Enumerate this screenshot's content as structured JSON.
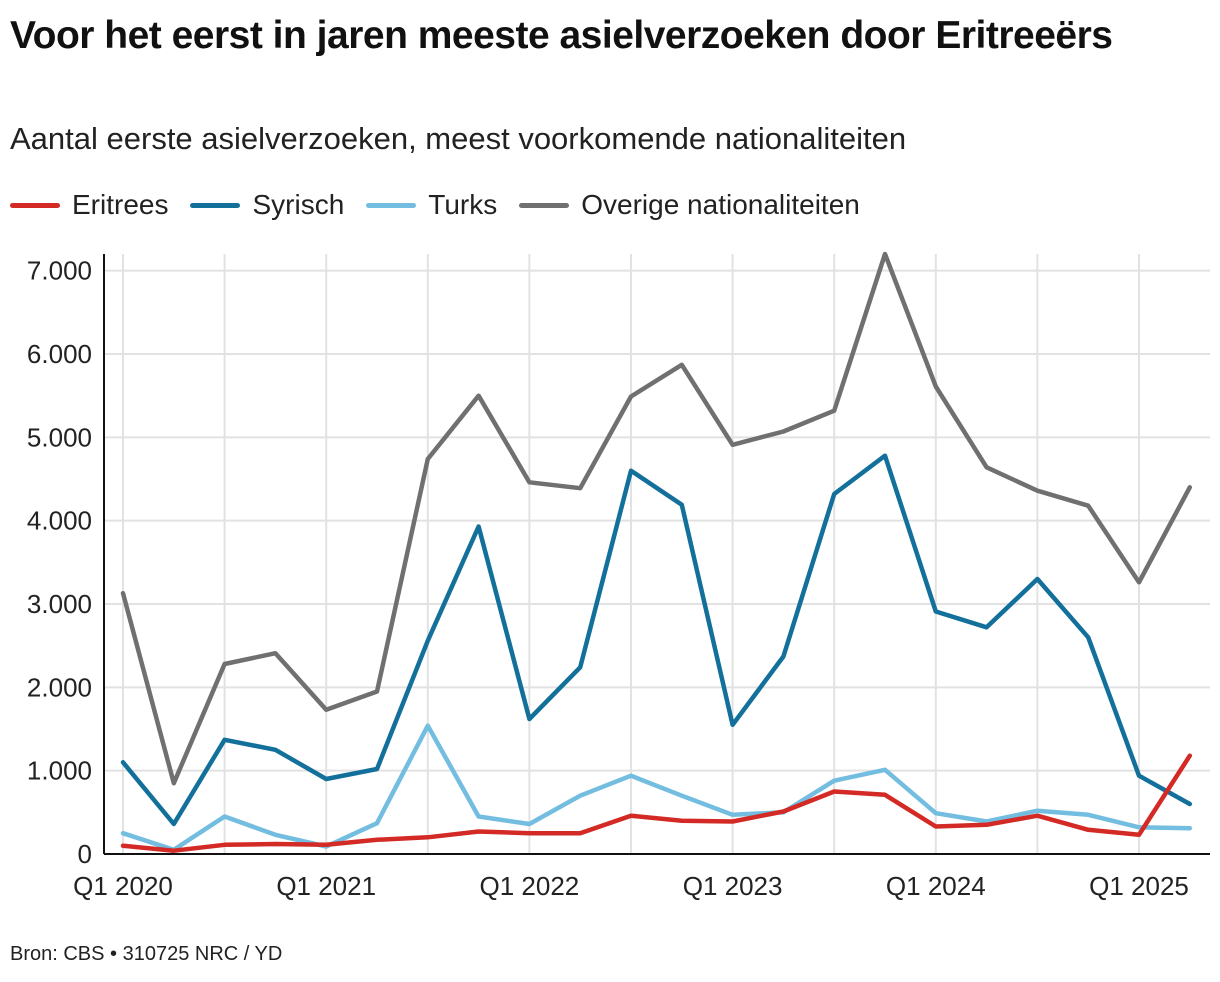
{
  "header": {
    "title": "Voor het eerst in jaren meeste asielverzoeken door Eritreeërs",
    "subtitle": "Aantal eerste asielverzoeken, meest voorkomende nationaliteiten"
  },
  "footer": {
    "source": "Bron: CBS • 310725 NRC / YD"
  },
  "chart_data": {
    "type": "line",
    "title": "Voor het eerst in jaren meeste asielverzoeken door Eritreeërs",
    "subtitle": "Aantal eerste asielverzoeken, meest voorkomende nationaliteiten",
    "x": [
      "Q1 2020",
      "Q2 2020",
      "Q3 2020",
      "Q4 2020",
      "Q1 2021",
      "Q2 2021",
      "Q3 2021",
      "Q4 2021",
      "Q1 2022",
      "Q2 2022",
      "Q3 2022",
      "Q4 2022",
      "Q1 2023",
      "Q2 2023",
      "Q3 2023",
      "Q4 2023",
      "Q1 2024",
      "Q2 2024",
      "Q3 2024",
      "Q4 2024",
      "Q1 2025",
      "Q2 2025"
    ],
    "x_tick_labels": [
      "Q1 2020",
      "Q1 2021",
      "Q1 2022",
      "Q1 2023",
      "Q1 2024",
      "Q1 2025"
    ],
    "ylim": [
      0,
      7200
    ],
    "y_ticks": [
      0,
      1000,
      2000,
      3000,
      4000,
      5000,
      6000,
      7000
    ],
    "y_tick_labels": [
      "0",
      "1.000",
      "2.000",
      "3.000",
      "4.000",
      "5.000",
      "6.000",
      "7.000"
    ],
    "grid": true,
    "legend_position": "top-left",
    "series": [
      {
        "name": "Overige nationaliteiten",
        "color": "#707070",
        "values": [
          3130,
          850,
          2280,
          2410,
          1730,
          1950,
          4740,
          5500,
          4460,
          4390,
          5490,
          5870,
          4910,
          5070,
          5320,
          7200,
          5610,
          4640,
          4360,
          4180,
          3260,
          4400
        ]
      },
      {
        "name": "Syrisch",
        "color": "#12709b",
        "values": [
          1100,
          360,
          1370,
          1250,
          900,
          1020,
          2560,
          3930,
          1620,
          2240,
          4600,
          4190,
          1550,
          2370,
          4320,
          4780,
          2910,
          2720,
          3300,
          2600,
          940,
          600
        ]
      },
      {
        "name": "Turks",
        "color": "#72bde0",
        "values": [
          250,
          50,
          450,
          230,
          90,
          370,
          1540,
          450,
          360,
          700,
          940,
          700,
          470,
          500,
          880,
          1010,
          490,
          390,
          520,
          470,
          320,
          310
        ]
      },
      {
        "name": "Eritrees",
        "color": "#d42a25",
        "values": [
          100,
          40,
          110,
          120,
          110,
          170,
          200,
          270,
          250,
          250,
          460,
          400,
          390,
          510,
          750,
          710,
          330,
          350,
          460,
          290,
          230,
          1180
        ]
      }
    ]
  }
}
